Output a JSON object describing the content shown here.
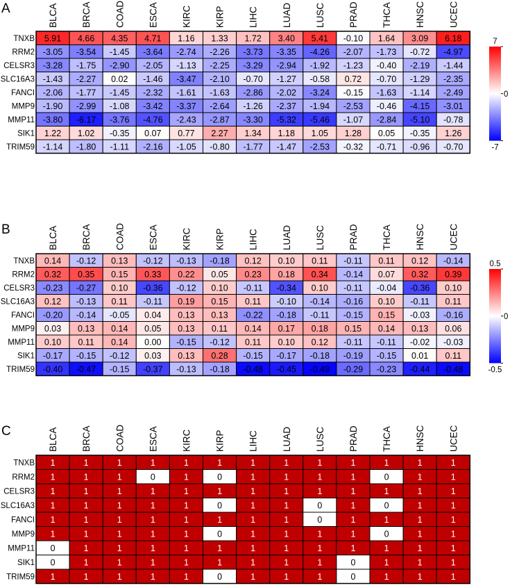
{
  "panels": [
    "A",
    "B",
    "C"
  ],
  "chart_data": [
    {
      "type": "heatmap",
      "panel": "A",
      "x_categories": [
        "BLCA",
        "BRCA",
        "COAD",
        "ESCA",
        "KIRC",
        "KIRP",
        "LIHC",
        "LUAD",
        "LUSC",
        "PRAD",
        "THCA",
        "HNSC",
        "UCEC"
      ],
      "y_categories": [
        "TNXB",
        "RRM2",
        "CELSR3",
        "SLC16A3",
        "FANCI",
        "MMP9",
        "MMP11",
        "SIK1",
        "TRIM59"
      ],
      "values": [
        [
          "5.91",
          "4.66",
          "4.35",
          "4.71",
          "1.16",
          "1.33",
          "1.72",
          "3.40",
          "5.41",
          "-0.10",
          "1.64",
          "3.09",
          "6.18"
        ],
        [
          "-3.05",
          "-3.54",
          "-1.45",
          "-3.64",
          "-2.74",
          "-2.26",
          "-3.73",
          "-3.35",
          "-4.26",
          "-2.07",
          "-1.73",
          "-0.72",
          "-4.97"
        ],
        [
          "-3.28",
          "-1.75",
          "-2.90",
          "-2.05",
          "-1.13",
          "-2.25",
          "-3.29",
          "-2.94",
          "-1.92",
          "-1.23",
          "-0.40",
          "-2.19",
          "-1.44"
        ],
        [
          "-1.43",
          "-2.27",
          "0.02",
          "-1.46",
          "-3.47",
          "-2.10",
          "-0.70",
          "-1.27",
          "-0.58",
          "0.72",
          "-0.70",
          "-1.29",
          "-2.35"
        ],
        [
          "-2.06",
          "-1.77",
          "-1.45",
          "-2.32",
          "-1.61",
          "-1.63",
          "-2.86",
          "-2.02",
          "-3.24",
          "-0.15",
          "-1.63",
          "-1.14",
          "-2.49"
        ],
        [
          "-1.90",
          "-2.99",
          "-1.08",
          "-3.42",
          "-3.37",
          "-2.64",
          "-1.26",
          "-2.37",
          "-1.94",
          "-2.53",
          "-0.46",
          "-4.15",
          "-3.01"
        ],
        [
          "-3.80",
          "-6.17",
          "-3.76",
          "-4.76",
          "-2.43",
          "-2.87",
          "-3.30",
          "-5.32",
          "-5.46",
          "-1.07",
          "-2.84",
          "-5.10",
          "-0.78"
        ],
        [
          "1.22",
          "1.02",
          "-0.35",
          "0.07",
          "0.77",
          "2.27",
          "1.34",
          "1.18",
          "1.05",
          "1.28",
          "0.05",
          "-0.35",
          "1.26"
        ],
        [
          "-1.14",
          "-1.80",
          "-1.11",
          "-2.16",
          "-1.05",
          "-0.80",
          "-1.77",
          "-1.47",
          "-2.53",
          "-0.32",
          "-0.71",
          "-0.96",
          "-0.70"
        ]
      ],
      "color_scale": {
        "min": -7,
        "max": 7,
        "low": "#0000ff",
        "mid": "#ffffff",
        "high": "#ff0000"
      },
      "legend_ticks": [
        "7",
        "0",
        "-7"
      ]
    },
    {
      "type": "heatmap",
      "panel": "B",
      "x_categories": [
        "BLCA",
        "BRCA",
        "COAD",
        "ESCA",
        "KIRC",
        "KIRP",
        "LIHC",
        "LUAD",
        "LUSC",
        "PRAD",
        "THCA",
        "HNSC",
        "UCEC"
      ],
      "y_categories": [
        "TNXB",
        "RRM2",
        "CELSR3",
        "SLC16A3",
        "FANCI",
        "MMP9",
        "MMP11",
        "SIK1",
        "TRIM59"
      ],
      "values": [
        [
          "0.14",
          "-0.12",
          "0.13",
          "-0.12",
          "-0.13",
          "-0.18",
          "0.12",
          "0.10",
          "0.11",
          "-0.11",
          "0.11",
          "0.12",
          "-0.14"
        ],
        [
          "0.32",
          "0.35",
          "0.15",
          "0.33",
          "0.22",
          "0.05",
          "0.23",
          "0.18",
          "0.34",
          "-0.14",
          "0.07",
          "0.32",
          "0.39"
        ],
        [
          "-0.23",
          "-0.27",
          "0.10",
          "-0.36",
          "-0.12",
          "0.10",
          "-0.11",
          "-0.34",
          "0.10",
          "-0.11",
          "-0.04",
          "-0.36",
          "0.10"
        ],
        [
          "0.12",
          "-0.13",
          "0.11",
          "-0.11",
          "0.19",
          "0.15",
          "0.11",
          "-0.10",
          "-0.14",
          "-0.16",
          "0.10",
          "-0.11",
          "0.11"
        ],
        [
          "-0.20",
          "-0.14",
          "-0.05",
          "0.04",
          "0.13",
          "0.13",
          "-0.22",
          "-0.18",
          "-0.11",
          "-0.15",
          "0.15",
          "-0.03",
          "-0.16"
        ],
        [
          "0.03",
          "0.13",
          "0.14",
          "0.05",
          "0.13",
          "0.11",
          "0.14",
          "0.17",
          "0.18",
          "0.15",
          "0.14",
          "0.13",
          "0.06"
        ],
        [
          "0.10",
          "0.11",
          "0.14",
          "0.00",
          "-0.15",
          "-0.12",
          "0.11",
          "0.10",
          "0.12",
          "-0.11",
          "-0.11",
          "-0.02",
          "-0.03"
        ],
        [
          "-0.17",
          "-0.15",
          "-0.12",
          "0.03",
          "0.13",
          "0.28",
          "-0.15",
          "-0.17",
          "-0.18",
          "-0.19",
          "-0.15",
          "0.01",
          "0.11"
        ],
        [
          "-0.40",
          "-0.47",
          "-0.15",
          "-0.37",
          "-0.13",
          "-0.18",
          "-0.48",
          "-0.45",
          "-0.49",
          "-0.29",
          "-0.23",
          "-0.44",
          "-0.48"
        ]
      ],
      "color_scale": {
        "min": -0.5,
        "max": 0.5,
        "low": "#0000ff",
        "mid": "#ffffff",
        "high": "#ff0000"
      },
      "legend_ticks": [
        "0.5",
        "0",
        "-0.5"
      ]
    },
    {
      "type": "heatmap",
      "panel": "C",
      "x_categories": [
        "BLCA",
        "BRCA",
        "COAD",
        "ESCA",
        "KIRC",
        "KIRP",
        "LIHC",
        "LUAD",
        "LUSC",
        "PRAD",
        "THCA",
        "HNSC",
        "UCEC"
      ],
      "y_categories": [
        "TNXB",
        "RRM2",
        "CELSR3",
        "SLC16A3",
        "FANCI",
        "MMP9",
        "MMP11",
        "SIK1",
        "TRIM59"
      ],
      "values": [
        [
          "1",
          "1",
          "1",
          "1",
          "1",
          "1",
          "1",
          "1",
          "1",
          "1",
          "1",
          "1",
          "1"
        ],
        [
          "1",
          "1",
          "1",
          "0",
          "1",
          "0",
          "1",
          "1",
          "1",
          "1",
          "0",
          "1",
          "1"
        ],
        [
          "1",
          "1",
          "1",
          "1",
          "1",
          "1",
          "1",
          "1",
          "1",
          "1",
          "1",
          "1",
          "1"
        ],
        [
          "1",
          "1",
          "1",
          "1",
          "1",
          "0",
          "1",
          "1",
          "0",
          "1",
          "0",
          "1",
          "1"
        ],
        [
          "1",
          "1",
          "1",
          "1",
          "1",
          "1",
          "1",
          "1",
          "0",
          "1",
          "1",
          "1",
          "1"
        ],
        [
          "1",
          "1",
          "1",
          "1",
          "1",
          "0",
          "1",
          "1",
          "1",
          "1",
          "0",
          "1",
          "1"
        ],
        [
          "0",
          "1",
          "1",
          "1",
          "1",
          "1",
          "1",
          "1",
          "1",
          "1",
          "1",
          "1",
          "1"
        ],
        [
          "0",
          "1",
          "1",
          "1",
          "1",
          "1",
          "1",
          "1",
          "1",
          "0",
          "1",
          "1",
          "1"
        ],
        [
          "1",
          "1",
          "1",
          "1",
          "1",
          "0",
          "1",
          "1",
          "1",
          "0",
          "1",
          "1",
          "1"
        ]
      ],
      "color_map": {
        "1": "#c00000",
        "0": "#ffffff"
      }
    }
  ]
}
